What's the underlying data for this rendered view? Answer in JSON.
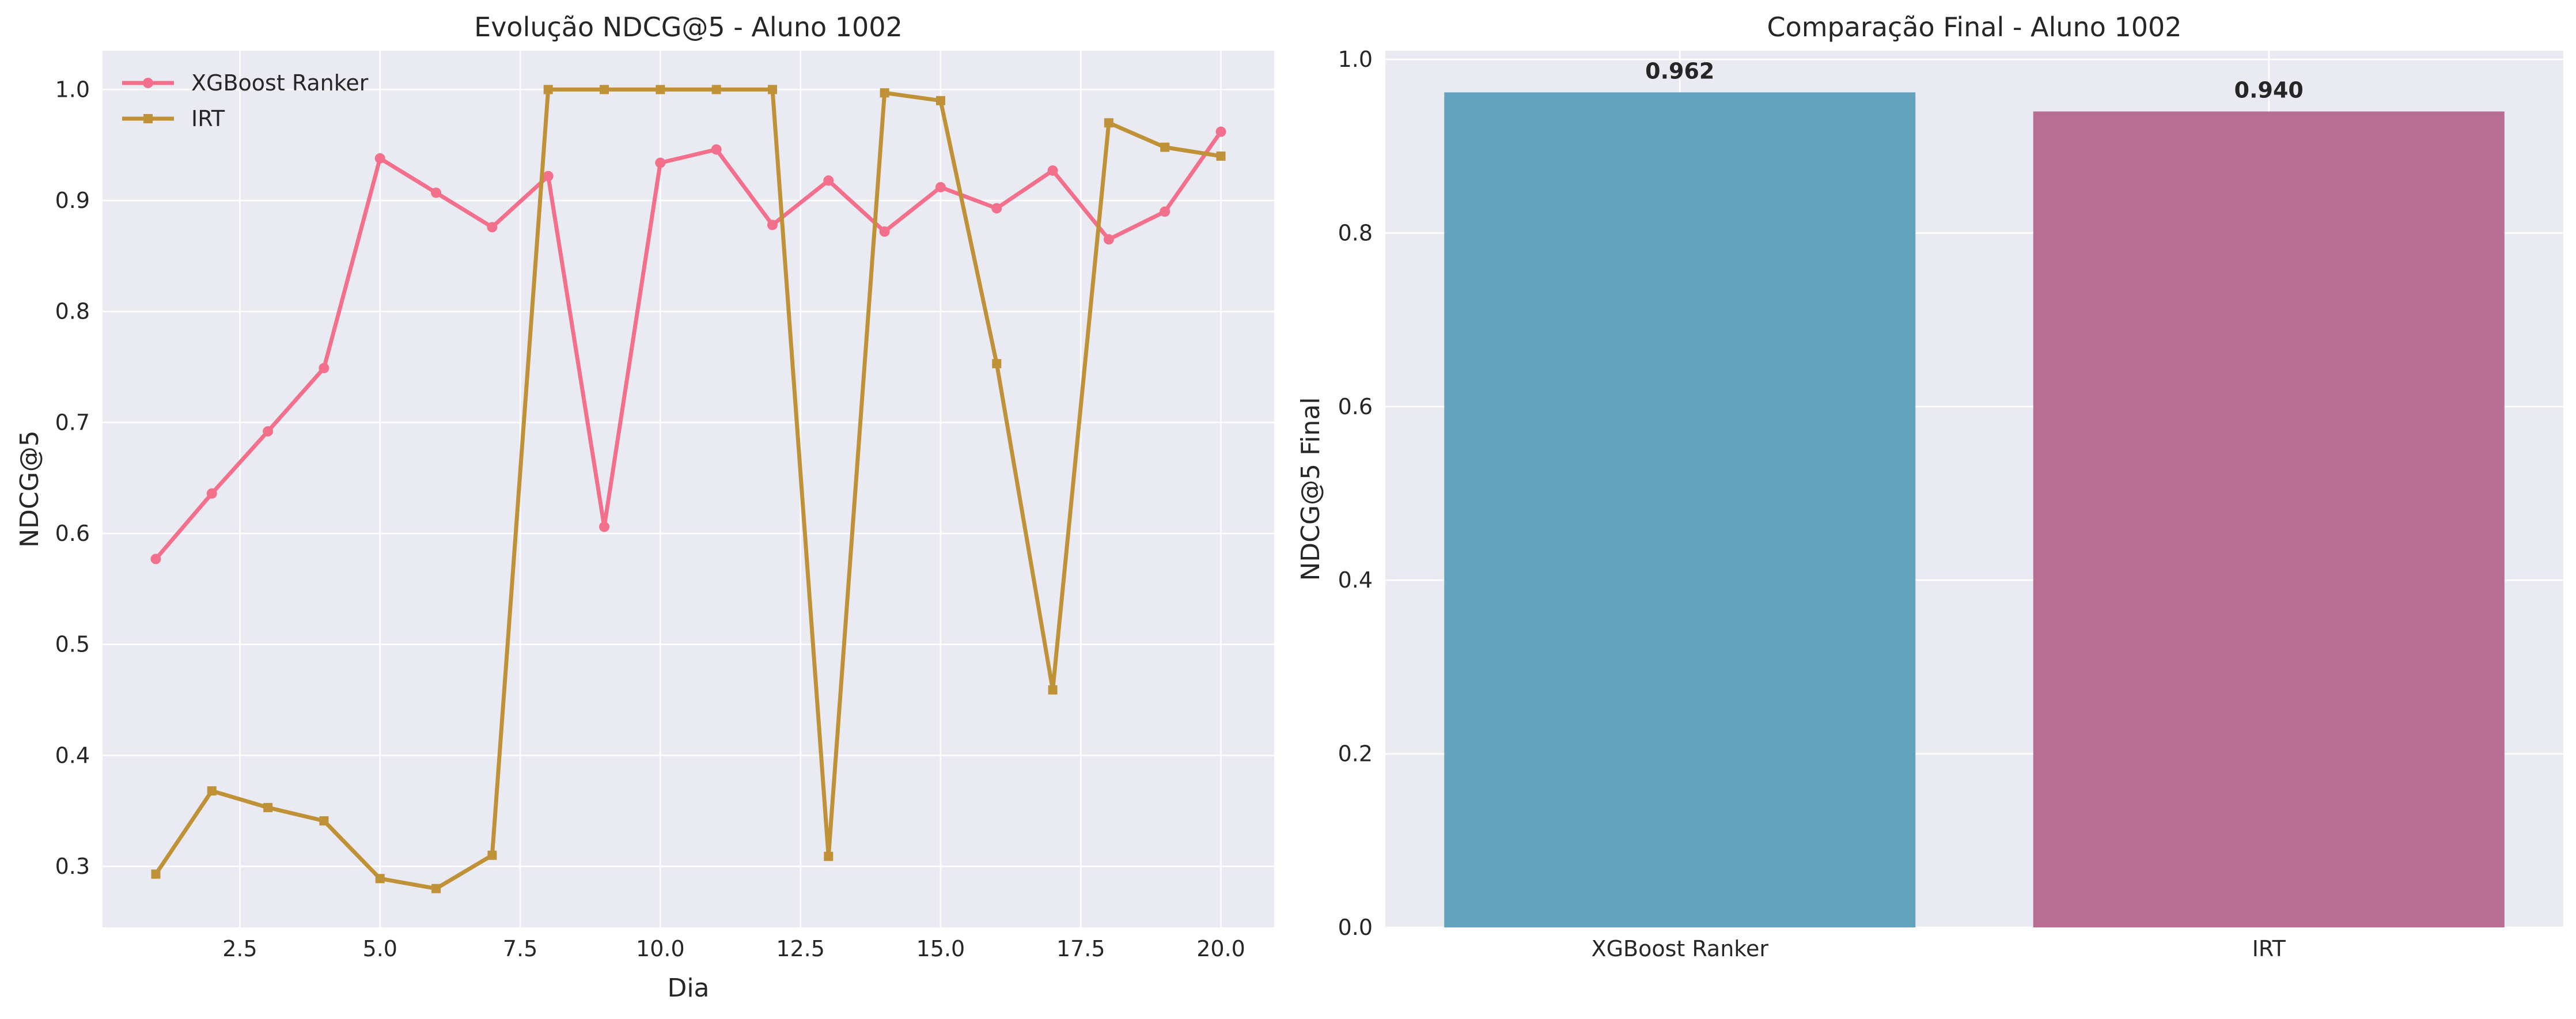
{
  "chart_data": [
    {
      "type": "line",
      "title": "Evolução NDCG@5 - Aluno 1002",
      "xlabel": "Dia",
      "ylabel": "NDCG@5",
      "xlim": [
        0.05,
        20.95
      ],
      "ylim": [
        0.245,
        1.035
      ],
      "xticks": [
        2.5,
        5.0,
        7.5,
        10.0,
        12.5,
        15.0,
        17.5,
        20.0
      ],
      "xtick_labels": [
        "2.5",
        "5.0",
        "7.5",
        "10.0",
        "12.5",
        "15.0",
        "17.5",
        "20.0"
      ],
      "yticks": [
        0.3,
        0.4,
        0.5,
        0.6,
        0.7,
        0.8,
        0.9,
        1.0
      ],
      "ytick_labels": [
        "0.3",
        "0.4",
        "0.5",
        "0.6",
        "0.7",
        "0.8",
        "0.9",
        "1.0"
      ],
      "grid": true,
      "legend_position": "top-left",
      "x": [
        1,
        2,
        3,
        4,
        5,
        6,
        7,
        8,
        9,
        10,
        11,
        12,
        13,
        14,
        15,
        16,
        17,
        18,
        19,
        20
      ],
      "series": [
        {
          "name": "XGBoost Ranker",
          "color": "#f2708b",
          "marker": "circle",
          "values": [
            0.577,
            0.636,
            0.692,
            0.749,
            0.938,
            0.907,
            0.876,
            0.922,
            0.606,
            0.934,
            0.946,
            0.878,
            0.918,
            0.872,
            0.912,
            0.893,
            0.927,
            0.865,
            0.89,
            0.962
          ]
        },
        {
          "name": "IRT",
          "color": "#bf9237",
          "marker": "square",
          "values": [
            0.293,
            0.368,
            0.353,
            0.341,
            0.289,
            0.28,
            0.31,
            1.0,
            1.0,
            1.0,
            1.0,
            1.0,
            0.309,
            0.997,
            0.99,
            0.753,
            0.459,
            0.97,
            0.948,
            0.94
          ]
        }
      ]
    },
    {
      "type": "bar",
      "title": "Comparação Final - Aluno 1002",
      "xlabel": "",
      "ylabel": "NDCG@5 Final",
      "ylim": [
        0.0,
        1.01
      ],
      "yticks": [
        0.0,
        0.2,
        0.4,
        0.6,
        0.8,
        1.0
      ],
      "ytick_labels": [
        "0.0",
        "0.2",
        "0.4",
        "0.6",
        "0.8",
        "1.0"
      ],
      "grid": true,
      "categories": [
        "XGBoost Ranker",
        "IRT"
      ],
      "values": [
        0.962,
        0.94
      ],
      "value_labels": [
        "0.962",
        "0.940"
      ],
      "colors": [
        "#65a2c0",
        "#b86d93"
      ]
    }
  ]
}
